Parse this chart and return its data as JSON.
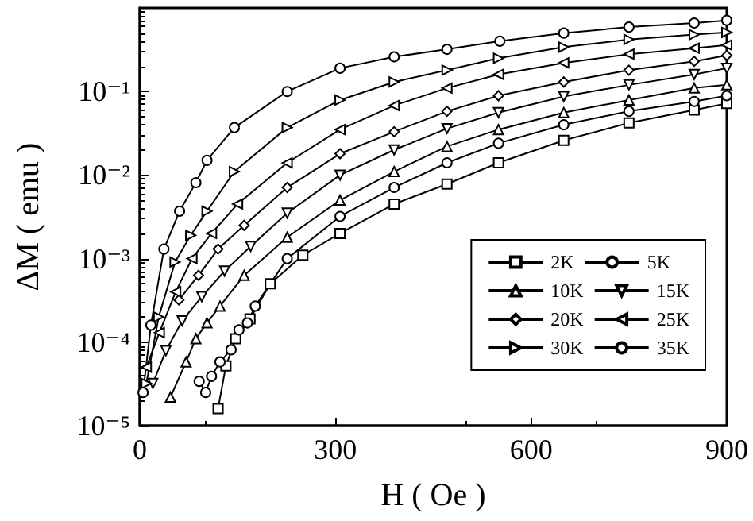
{
  "chart_data": {
    "type": "line",
    "xlabel": "H ( Oe )",
    "ylabel": "ΔM ( emu )",
    "log": "y",
    "xlim": [
      0,
      900
    ],
    "xticks": [
      0,
      300,
      600,
      900
    ],
    "ylim": [
      1e-05,
      1
    ],
    "yticks": [
      {
        "value": 1e-05,
        "label": "10⁻⁵"
      },
      {
        "value": 0.0001,
        "label": "10⁻⁴"
      },
      {
        "value": 0.001,
        "label": "10⁻³"
      },
      {
        "value": 0.01,
        "label": "10⁻²"
      },
      {
        "value": 0.1,
        "label": "10⁻¹"
      }
    ],
    "grid": false,
    "legend": "bottom right",
    "line_style": "solid",
    "series": [
      {
        "name": "2K",
        "color": "#000000",
        "marker": "square",
        "x": [
          120,
          132,
          147,
          169,
          200,
          250,
          307,
          390,
          471,
          550,
          650,
          750,
          850,
          900
        ],
        "values": [
          1.6e-05,
          5.2e-05,
          0.00011,
          0.00019,
          0.0005,
          0.0011,
          0.002,
          0.0045,
          0.0078,
          0.014,
          0.026,
          0.042,
          0.06,
          0.072
        ]
      },
      {
        "name": "5K",
        "color": "#000000",
        "marker": "circle",
        "x": [
          91,
          101,
          110,
          123,
          140,
          152,
          165,
          177,
          226,
          307,
          390,
          471,
          550,
          650,
          750,
          850,
          900
        ],
        "values": [
          3.4e-05,
          2.5e-05,
          3.9e-05,
          5.8e-05,
          8.1e-05,
          0.00014,
          0.00017,
          0.00027,
          0.001,
          0.0032,
          0.0071,
          0.014,
          0.024,
          0.04,
          0.058,
          0.076,
          0.089
        ]
      },
      {
        "name": "10K",
        "color": "#000000",
        "marker": "triangle",
        "x": [
          47,
          71,
          86,
          103,
          123,
          160,
          226,
          307,
          390,
          471,
          550,
          650,
          750,
          850,
          900
        ],
        "values": [
          2.2e-05,
          5.8e-05,
          0.00011,
          0.00017,
          0.00027,
          0.00063,
          0.0018,
          0.005,
          0.011,
          0.022,
          0.035,
          0.056,
          0.079,
          0.11,
          0.12
        ]
      },
      {
        "name": "15K",
        "color": "#000000",
        "marker": "triangle-down",
        "x": [
          20,
          40,
          65,
          95,
          130,
          170,
          226,
          307,
          390,
          471,
          550,
          650,
          750,
          850,
          900
        ],
        "values": [
          3.2e-05,
          7.9e-05,
          0.00018,
          0.00035,
          0.00071,
          0.0014,
          0.0035,
          0.01,
          0.02,
          0.036,
          0.056,
          0.087,
          0.12,
          0.16,
          0.19
        ]
      },
      {
        "name": "20K",
        "color": "#000000",
        "marker": "diamond",
        "x": [
          60,
          90,
          120,
          160,
          226,
          307,
          390,
          471,
          550,
          650,
          750,
          850,
          900
        ],
        "values": [
          0.00032,
          0.00063,
          0.0013,
          0.0025,
          0.0071,
          0.018,
          0.033,
          0.058,
          0.089,
          0.13,
          0.18,
          0.23,
          0.27
        ]
      },
      {
        "name": "25K",
        "color": "#000000",
        "marker": "triangle-left",
        "x": [
          10,
          30,
          55,
          80,
          110,
          150,
          226,
          307,
          390,
          471,
          550,
          650,
          750,
          850,
          900
        ],
        "values": [
          5e-05,
          0.00013,
          0.0004,
          0.001,
          0.002,
          0.0045,
          0.014,
          0.035,
          0.068,
          0.11,
          0.16,
          0.22,
          0.28,
          0.33,
          0.36
        ]
      },
      {
        "name": "30K",
        "color": "#000000",
        "marker": "triangle-right",
        "x": [
          10,
          29,
          54,
          78,
          103,
          145,
          226,
          307,
          390,
          471,
          550,
          650,
          750,
          850,
          900
        ],
        "values": [
          3.2e-05,
          0.0002,
          0.00091,
          0.0019,
          0.0037,
          0.011,
          0.037,
          0.079,
          0.13,
          0.18,
          0.25,
          0.34,
          0.42,
          0.48,
          0.51
        ]
      },
      {
        "name": "35K",
        "color": "#000000",
        "marker": "circle",
        "x": [
          5,
          17,
          37,
          61,
          86,
          103,
          145,
          226,
          307,
          390,
          471,
          552,
          650,
          750,
          850,
          900
        ],
        "values": [
          2.5e-05,
          0.00016,
          0.0013,
          0.0037,
          0.0081,
          0.015,
          0.037,
          0.1,
          0.19,
          0.26,
          0.32,
          0.4,
          0.5,
          0.59,
          0.66,
          0.71
        ]
      }
    ]
  }
}
